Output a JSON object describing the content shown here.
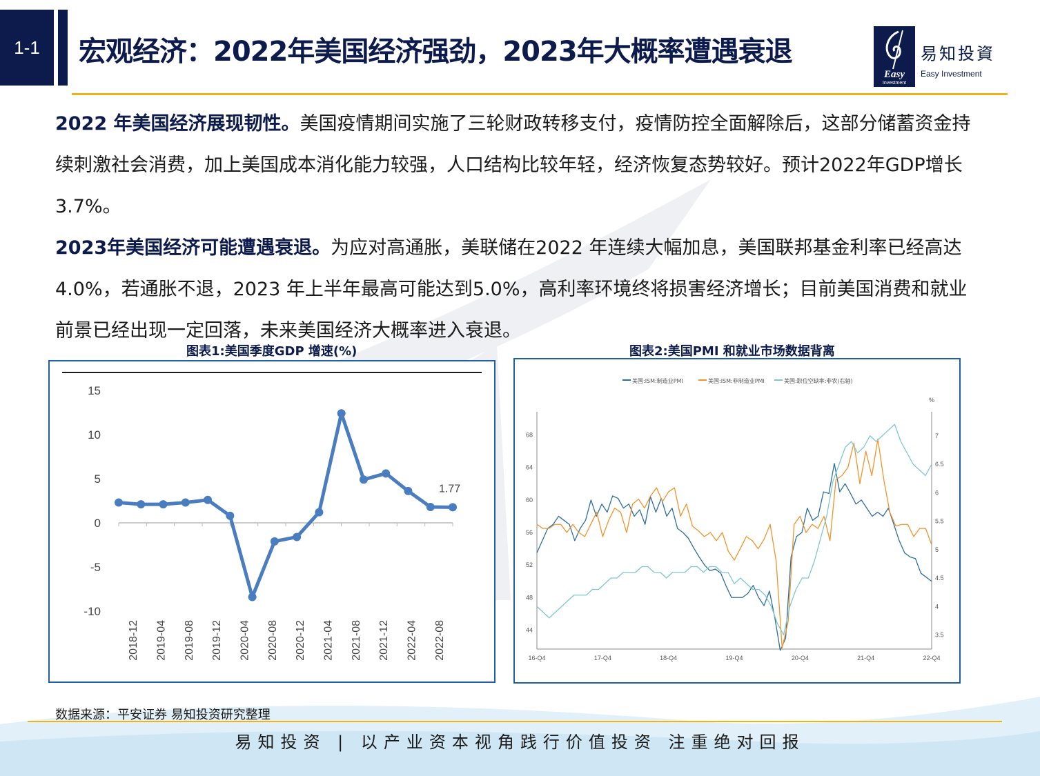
{
  "header": {
    "section_number": "1-1",
    "title": "宏观经济：2022年美国经济强劲，2023年大概率遭遇衰退"
  },
  "logo": {
    "name": "易知投資",
    "english": "Easy Investment",
    "mark_text": "Easy",
    "mark_subtext": "Investment"
  },
  "body": {
    "paragraph1_lead": "2022 年美国经济展现韧性。",
    "paragraph1_text": "美国疫情期间实施了三轮财政转移支付，疫情防控全面解除后，这部分储蓄资金持续刺激社会消费，加上美国成本消化能力较强，人口结构比较年轻，经济恢复态势较好。预计2022年GDP增长3.7%。",
    "paragraph2_lead": "2023年美国经济可能遭遇衰退。",
    "paragraph2_text": "为应对高通胀，美联储在2022 年连续大幅加息，美国联邦基金利率已经高达4.0%，若通胀不退，2023 年上半年最高可能达到5.0%，高利率环境终将损害经济增长；目前美国消费和就业前景已经出现一定回落，未来美国经济大概率进入衰退。"
  },
  "figure1": {
    "title": "图表1:美国季度GDP 增速(%)"
  },
  "figure2": {
    "title": "图表2:美国PMI 和就业市场数据背离"
  },
  "chart_data": [
    {
      "type": "line",
      "title": "图表1:美国季度GDP 增速(%)",
      "x": [
        "2018-12",
        "2019-03",
        "2019-06",
        "2019-09",
        "2019-12",
        "2020-03",
        "2020-06",
        "2020-09",
        "2020-12",
        "2021-03",
        "2021-06",
        "2021-09",
        "2021-12",
        "2022-03",
        "2022-06",
        "2022-09"
      ],
      "tick_labels": [
        "2018-12",
        "2019-04",
        "2019-08",
        "2019-12",
        "2020-04",
        "2020-08",
        "2020-12",
        "2021-04",
        "2021-08",
        "2021-12",
        "2022-04",
        "2022-08"
      ],
      "values": [
        2.3,
        2.1,
        2.1,
        2.3,
        2.6,
        0.8,
        -8.4,
        -2.1,
        -1.6,
        1.2,
        12.4,
        4.9,
        5.6,
        3.6,
        1.8,
        1.77
      ],
      "data_label": "1.77",
      "ylim": [
        -10,
        15
      ],
      "yticks": [
        "15",
        "10",
        "5",
        "0",
        "-5",
        "-10"
      ],
      "color": "#4a7cc0",
      "grid": false
    },
    {
      "type": "line",
      "title": "图表2:美国PMI 和就业市场数据背离",
      "legend": [
        "美国:ISM:制造业PMI",
        "美国:ISM:非制造业PMI",
        "美国:职位空缺率:非农(右轴)"
      ],
      "legend_position": "top-left",
      "x_ticks": [
        "16-Q4",
        "17-Q4",
        "18-Q4",
        "19-Q4",
        "20-Q4",
        "21-Q4",
        "22-Q4"
      ],
      "y_left_ticks": [
        "68",
        "64",
        "60",
        "56",
        "52",
        "48",
        "44"
      ],
      "y_right_ticks": [
        "7",
        "6.5",
        "6",
        "5.5",
        "5",
        "4.5",
        "4",
        "3.5"
      ],
      "y_right_unit": "%",
      "ylim_left": [
        42,
        70
      ],
      "ylim_right": [
        3.3,
        7.3
      ],
      "colors": [
        "#2e6e9e",
        "#f0932b",
        "#7fc7cf"
      ],
      "series": [
        {
          "name": "美国:ISM:制造业PMI",
          "axis": "left",
          "values": [
            53.5,
            55,
            56.5,
            57,
            58,
            57.5,
            57,
            55,
            56.5,
            57.5,
            60,
            58,
            59.5,
            58.5,
            60.5,
            60.2,
            59,
            59.5,
            58,
            58.8,
            57,
            60.4,
            58.5,
            60.2,
            58,
            59,
            56.5,
            56,
            55.3,
            54.1,
            53,
            52,
            51.3,
            51.5,
            51,
            49.4,
            48,
            48,
            48,
            48.5,
            49.5,
            48,
            47,
            48.8,
            45.5,
            41.5,
            43,
            53,
            55.5,
            56,
            59,
            57.5,
            58,
            61,
            60.8,
            64.5,
            61,
            62,
            60.8,
            59.5,
            60,
            59,
            58,
            58.5,
            58,
            59,
            57,
            55,
            53.5,
            53,
            52.8,
            51,
            50.5,
            50
          ]
        },
        {
          "name": "美国:ISM:非制造业PMI",
          "axis": "left",
          "values": [
            57,
            56.5,
            56.5,
            57,
            57,
            56,
            57,
            56,
            55.5,
            57,
            58.5,
            55.5,
            57.5,
            59,
            58.5,
            56,
            59.5,
            60.1,
            59,
            60.5,
            61.5,
            59.8,
            61,
            61.5,
            58,
            59.5,
            56.8,
            56.2,
            55.5,
            56,
            55,
            56,
            53.7,
            52.6,
            54,
            55.5,
            55,
            54,
            55.2,
            57,
            52.5,
            41.8,
            45,
            57,
            58,
            56,
            57,
            56.5,
            58,
            55,
            62.5,
            63,
            64,
            67,
            62,
            66,
            63,
            67.5,
            62.5,
            58.5,
            56.8,
            57,
            57,
            55.5,
            56.5,
            56.5,
            54.5
          ]
        },
        {
          "name": "美国:职位空缺率:非农(右轴)",
          "axis": "right",
          "values": [
            4,
            3.9,
            3.8,
            3.9,
            4,
            4.1,
            4.2,
            4.2,
            4.2,
            4.3,
            4.3,
            4.4,
            4.5,
            4.5,
            4.6,
            4.6,
            4.6,
            4.7,
            4.7,
            4.6,
            4.6,
            4.5,
            4.6,
            4.6,
            4.6,
            4.7,
            4.7,
            4.6,
            4.7,
            4.7,
            4.6,
            4.6,
            4.4,
            4.5,
            4.4,
            4.3,
            4.3,
            4.2,
            4,
            3.7,
            3.5,
            4,
            4.3,
            4.5,
            4.5,
            4.8,
            5.2,
            5.6,
            6.2,
            6.5,
            6.8,
            6.9,
            6.7,
            6.8,
            7,
            6.9,
            7,
            7.1,
            7.2,
            6.9,
            6.7,
            6.5,
            6.4,
            6.3,
            6.5
          ]
        }
      ]
    }
  ],
  "footer": {
    "source": "数据来源：平安证券 易知投资研究整理",
    "slogan": "易知投资 | 以产业资本视角践行价值投资   注重绝对回报"
  }
}
